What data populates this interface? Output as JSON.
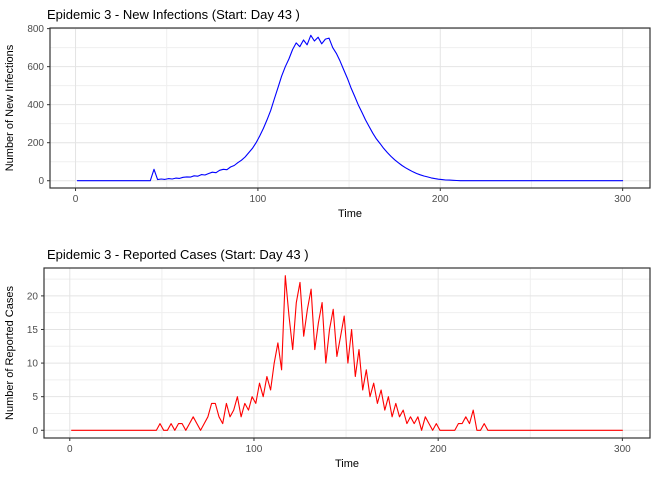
{
  "page": {
    "background": "#ffffff"
  },
  "chart_data": [
    {
      "type": "line",
      "title": "Epidemic 3 - New Infections (Start: Day 43 )",
      "xlabel": "Time",
      "ylabel": "Number of New Infections",
      "start_day_shown_in_title": 43,
      "legend": "none",
      "grid": "major+minor",
      "x_ticks": [
        0,
        100,
        200,
        300
      ],
      "y_ticks": [
        0,
        200,
        400,
        600,
        800
      ],
      "xlim": [
        -14,
        315
      ],
      "ylim": [
        -38.3,
        803.3
      ],
      "panel_border_color": "#333333",
      "grid_major_color": "#e4e4e4",
      "grid_minor_color": "#efefef",
      "tick_label_color": "#4d4d4d",
      "series": [
        {
          "name": "new-infections",
          "color": "#0000FF",
          "x": [
            1,
            3,
            5,
            7,
            9,
            11,
            13,
            15,
            17,
            19,
            21,
            23,
            25,
            27,
            29,
            31,
            33,
            35,
            37,
            39,
            41,
            43,
            45,
            47,
            49,
            51,
            53,
            55,
            57,
            59,
            61,
            63,
            65,
            67,
            69,
            71,
            73,
            75,
            77,
            79,
            81,
            83,
            85,
            87,
            89,
            91,
            93,
            95,
            97,
            99,
            101,
            103,
            105,
            107,
            109,
            111,
            113,
            115,
            117,
            119,
            121,
            123,
            125,
            127,
            129,
            131,
            133,
            135,
            137,
            139,
            141,
            143,
            145,
            147,
            149,
            151,
            153,
            155,
            157,
            159,
            161,
            163,
            165,
            167,
            169,
            171,
            173,
            175,
            177,
            179,
            181,
            183,
            185,
            187,
            189,
            191,
            193,
            195,
            197,
            199,
            201,
            203,
            205,
            207,
            209,
            211,
            213,
            215,
            217,
            219,
            221,
            223,
            225,
            227,
            229,
            231,
            233,
            235,
            237,
            239,
            241,
            243,
            245,
            247,
            249,
            251,
            253,
            255,
            257,
            259,
            261,
            263,
            265,
            267,
            269,
            271,
            273,
            275,
            277,
            279,
            281,
            283,
            285,
            287,
            289,
            291,
            293,
            295,
            297,
            299,
            300
          ],
          "y": [
            0,
            0,
            0,
            0,
            0,
            0,
            0,
            0,
            0,
            0,
            0,
            0,
            0,
            0,
            0,
            0,
            0,
            0,
            0,
            0,
            0,
            60,
            6,
            9,
            7,
            11,
            9,
            14,
            12,
            18,
            20,
            19,
            26,
            24,
            32,
            30,
            38,
            45,
            42,
            55,
            60,
            58,
            72,
            80,
            95,
            108,
            125,
            148,
            170,
            200,
            235,
            275,
            320,
            370,
            430,
            490,
            550,
            600,
            640,
            690,
            725,
            705,
            740,
            715,
            765,
            735,
            755,
            720,
            745,
            750,
            700,
            670,
            630,
            585,
            540,
            490,
            445,
            400,
            360,
            320,
            285,
            250,
            220,
            195,
            170,
            148,
            128,
            110,
            95,
            80,
            68,
            57,
            47,
            38,
            31,
            25,
            20,
            15,
            11,
            8,
            6,
            4,
            3,
            2,
            1,
            0,
            0,
            0,
            0,
            0,
            0,
            0,
            0,
            0,
            0,
            0,
            0,
            0,
            0,
            0,
            0,
            0,
            0,
            0,
            0,
            0,
            0,
            0,
            0,
            0,
            0,
            0,
            0,
            0,
            0,
            0,
            0,
            0,
            0,
            0,
            0,
            0,
            0,
            0,
            0,
            0,
            0,
            0,
            0,
            0,
            0
          ]
        }
      ]
    },
    {
      "type": "line",
      "title": "Epidemic 3 - Reported Cases (Start: Day 43 )",
      "xlabel": "Time",
      "ylabel": "Number of Reported Cases",
      "start_day_shown_in_title": 43,
      "legend": "none",
      "grid": "major+minor",
      "x_ticks": [
        0,
        100,
        200,
        300
      ],
      "y_ticks": [
        0,
        5,
        10,
        15,
        20
      ],
      "xlim": [
        -14,
        315
      ],
      "ylim": [
        -1.15,
        24.15
      ],
      "panel_border_color": "#333333",
      "grid_major_color": "#e4e4e4",
      "grid_minor_color": "#efefef",
      "tick_label_color": "#4d4d4d",
      "series": [
        {
          "name": "reported-cases",
          "color": "#FF0000",
          "x": [
            1,
            3,
            5,
            7,
            9,
            11,
            13,
            15,
            17,
            19,
            21,
            23,
            25,
            27,
            29,
            31,
            33,
            35,
            37,
            39,
            41,
            43,
            45,
            47,
            49,
            51,
            53,
            55,
            57,
            59,
            61,
            63,
            65,
            67,
            69,
            71,
            73,
            75,
            77,
            79,
            81,
            83,
            85,
            87,
            89,
            91,
            93,
            95,
            97,
            99,
            101,
            103,
            105,
            107,
            109,
            111,
            113,
            115,
            117,
            119,
            121,
            123,
            125,
            127,
            129,
            131,
            133,
            135,
            137,
            139,
            141,
            143,
            145,
            147,
            149,
            151,
            153,
            155,
            157,
            159,
            161,
            163,
            165,
            167,
            169,
            171,
            173,
            175,
            177,
            179,
            181,
            183,
            185,
            187,
            189,
            191,
            193,
            195,
            197,
            199,
            201,
            203,
            205,
            207,
            209,
            211,
            213,
            215,
            217,
            219,
            221,
            223,
            225,
            227,
            229,
            231,
            233,
            235,
            237,
            239,
            241,
            243,
            245,
            247,
            249,
            251,
            253,
            255,
            257,
            259,
            261,
            263,
            265,
            267,
            269,
            271,
            273,
            275,
            277,
            279,
            281,
            283,
            285,
            287,
            289,
            291,
            293,
            295,
            297,
            299,
            300
          ],
          "y": [
            0,
            0,
            0,
            0,
            0,
            0,
            0,
            0,
            0,
            0,
            0,
            0,
            0,
            0,
            0,
            0,
            0,
            0,
            0,
            0,
            0,
            0,
            0,
            0,
            1,
            0,
            0,
            1,
            0,
            1,
            1,
            0,
            1,
            2,
            1,
            0,
            1,
            2,
            4,
            4,
            2,
            1,
            4,
            2,
            3,
            5,
            2,
            4,
            3,
            5,
            4,
            7,
            5,
            8,
            6,
            10,
            13,
            9,
            23,
            17,
            12,
            19,
            22,
            14,
            18,
            21,
            12,
            16,
            19,
            10,
            15,
            18,
            11,
            14,
            17,
            10,
            15,
            8,
            12,
            6,
            9,
            5,
            7,
            4,
            6,
            3,
            5,
            2,
            4,
            2,
            3,
            1,
            2,
            1,
            2,
            0,
            2,
            1,
            0,
            1,
            0,
            0,
            0,
            0,
            0,
            1,
            1,
            2,
            1,
            3,
            0,
            0,
            1,
            0,
            0,
            0,
            0,
            0,
            0,
            0,
            0,
            0,
            0,
            0,
            0,
            0,
            0,
            0,
            0,
            0,
            0,
            0,
            0,
            0,
            0,
            0,
            0,
            0,
            0,
            0,
            0,
            0,
            0,
            0,
            0,
            0,
            0,
            0,
            0,
            0,
            0
          ]
        }
      ]
    }
  ]
}
